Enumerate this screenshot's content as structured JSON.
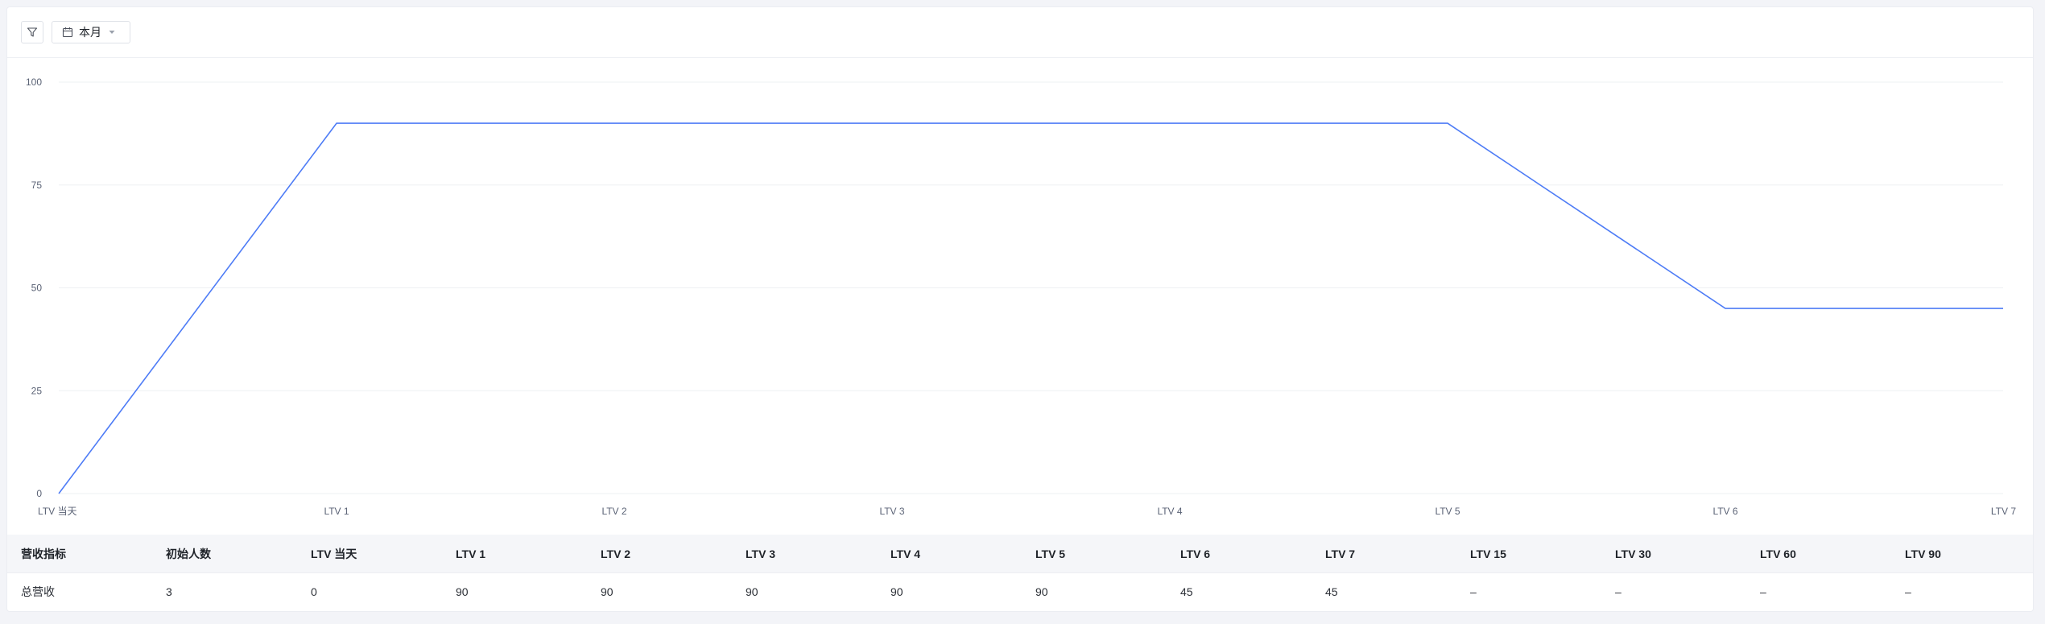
{
  "toolbar": {
    "date_range_label": "本月",
    "filter_icon": "filter-icon",
    "calendar_icon": "calendar-icon",
    "caret_icon": "caret-down-icon"
  },
  "colors": {
    "line": "#4e7cf6",
    "grid": "#eef0f3",
    "axis_text": "#5a6275"
  },
  "chart_data": {
    "type": "line",
    "categories": [
      "LTV 当天",
      "LTV 1",
      "LTV 2",
      "LTV 3",
      "LTV 4",
      "LTV 5",
      "LTV 6",
      "LTV 7"
    ],
    "series": [
      {
        "values": [
          0,
          90,
          90,
          90,
          90,
          90,
          45,
          45
        ]
      }
    ],
    "yticks": [
      0,
      25,
      50,
      75,
      100
    ],
    "ylim": [
      0,
      100
    ],
    "grid": true
  },
  "table": {
    "headers": [
      "营收指标",
      "初始人数",
      "LTV 当天",
      "LTV 1",
      "LTV 2",
      "LTV 3",
      "LTV 4",
      "LTV 5",
      "LTV 6",
      "LTV 7",
      "LTV 15",
      "LTV 30",
      "LTV 60",
      "LTV 90"
    ],
    "rows": [
      [
        "总营收",
        "3",
        "0",
        "90",
        "90",
        "90",
        "90",
        "90",
        "45",
        "45",
        "–",
        "–",
        "–",
        "–"
      ]
    ]
  }
}
